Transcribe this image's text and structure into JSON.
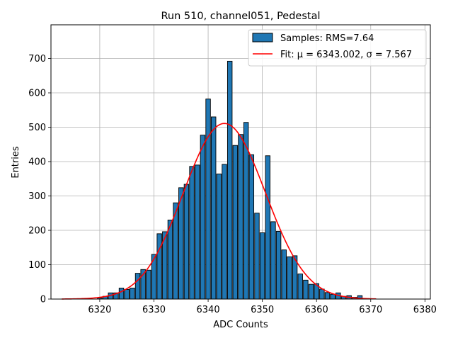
{
  "chart_data": {
    "type": "bar",
    "title": "Run 510, channel051, Pedestal",
    "xlabel": "ADC Counts",
    "ylabel": "Entries",
    "xlim": [
      6311,
      6381
    ],
    "ylim": [
      0,
      798
    ],
    "x_ticks": [
      6320,
      6330,
      6340,
      6350,
      6360,
      6370,
      6380
    ],
    "y_ticks": [
      0,
      100,
      200,
      300,
      400,
      500,
      600,
      700
    ],
    "grid": true,
    "legend_position": "top-right",
    "bar_color": "#1f77b4",
    "fit_color": "#ff0000",
    "bin_width": 0.85,
    "series": [
      {
        "name": "Samples: RMS=7.64",
        "x": [
          6320,
          6321,
          6322,
          6323,
          6324,
          6325,
          6326,
          6327,
          6328,
          6329,
          6330,
          6331,
          6332,
          6333,
          6334,
          6335,
          6336,
          6337,
          6338,
          6339,
          6340,
          6341,
          6342,
          6343,
          6344,
          6345,
          6346,
          6347,
          6348,
          6349,
          6350,
          6351,
          6352,
          6353,
          6354,
          6355,
          6356,
          6357,
          6358,
          6359,
          6360,
          6361,
          6362,
          6363,
          6364,
          6365,
          6366,
          6367,
          6368,
          6369
        ],
        "values": [
          3,
          8,
          18,
          18,
          32,
          28,
          32,
          75,
          86,
          84,
          130,
          190,
          196,
          230,
          280,
          324,
          334,
          386,
          390,
          477,
          582,
          530,
          364,
          392,
          692,
          447,
          479,
          514,
          420,
          250,
          193,
          417,
          225,
          197,
          143,
          123,
          126,
          73,
          55,
          43,
          45,
          29,
          19,
          14,
          18,
          8,
          10,
          5,
          10,
          1
        ]
      },
      {
        "name": "Fit: μ = 6343.002, σ = 7.567",
        "mu": 6343.002,
        "sigma": 7.567,
        "amplitude": 511,
        "x_range": [
          6313,
          6371
        ]
      }
    ]
  }
}
